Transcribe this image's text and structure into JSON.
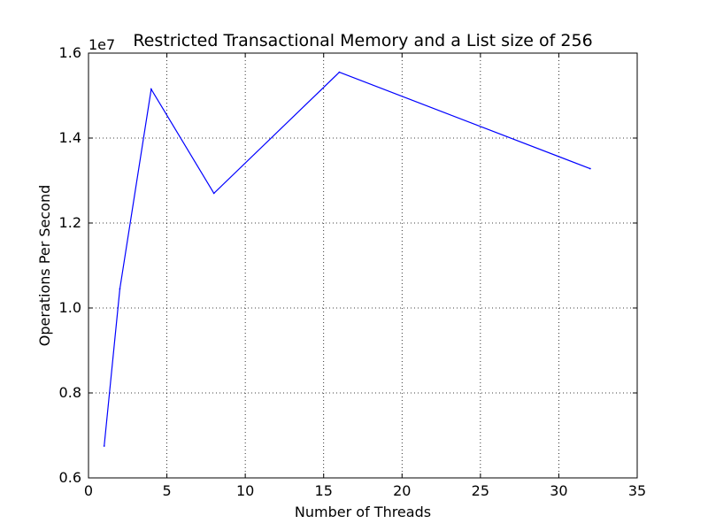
{
  "chart_data": {
    "type": "line",
    "title": "Restricted Transactional Memory and a List size of 256",
    "xlabel": "Number of Threads",
    "ylabel": "Operations Per Second",
    "y_multiplier_label": "1e7",
    "xlim": [
      0,
      35
    ],
    "ylim": [
      0.6,
      1.6
    ],
    "x_ticks": [
      0,
      5,
      10,
      15,
      20,
      25,
      30,
      35
    ],
    "x_tick_labels": [
      "0",
      "5",
      "10",
      "15",
      "20",
      "25",
      "30",
      "35"
    ],
    "y_ticks": [
      0.6,
      0.8,
      1.0,
      1.2,
      1.4,
      1.6
    ],
    "y_tick_labels": [
      "0.6",
      "0.8",
      "1.0",
      "1.2",
      "1.4",
      "1.6"
    ],
    "grid": true,
    "series": [
      {
        "x": [
          1,
          2,
          4,
          8,
          16,
          32
        ],
        "values": [
          0.675,
          1.045,
          1.515,
          1.27,
          1.555,
          1.328
        ],
        "color": "#0000ff"
      }
    ]
  }
}
